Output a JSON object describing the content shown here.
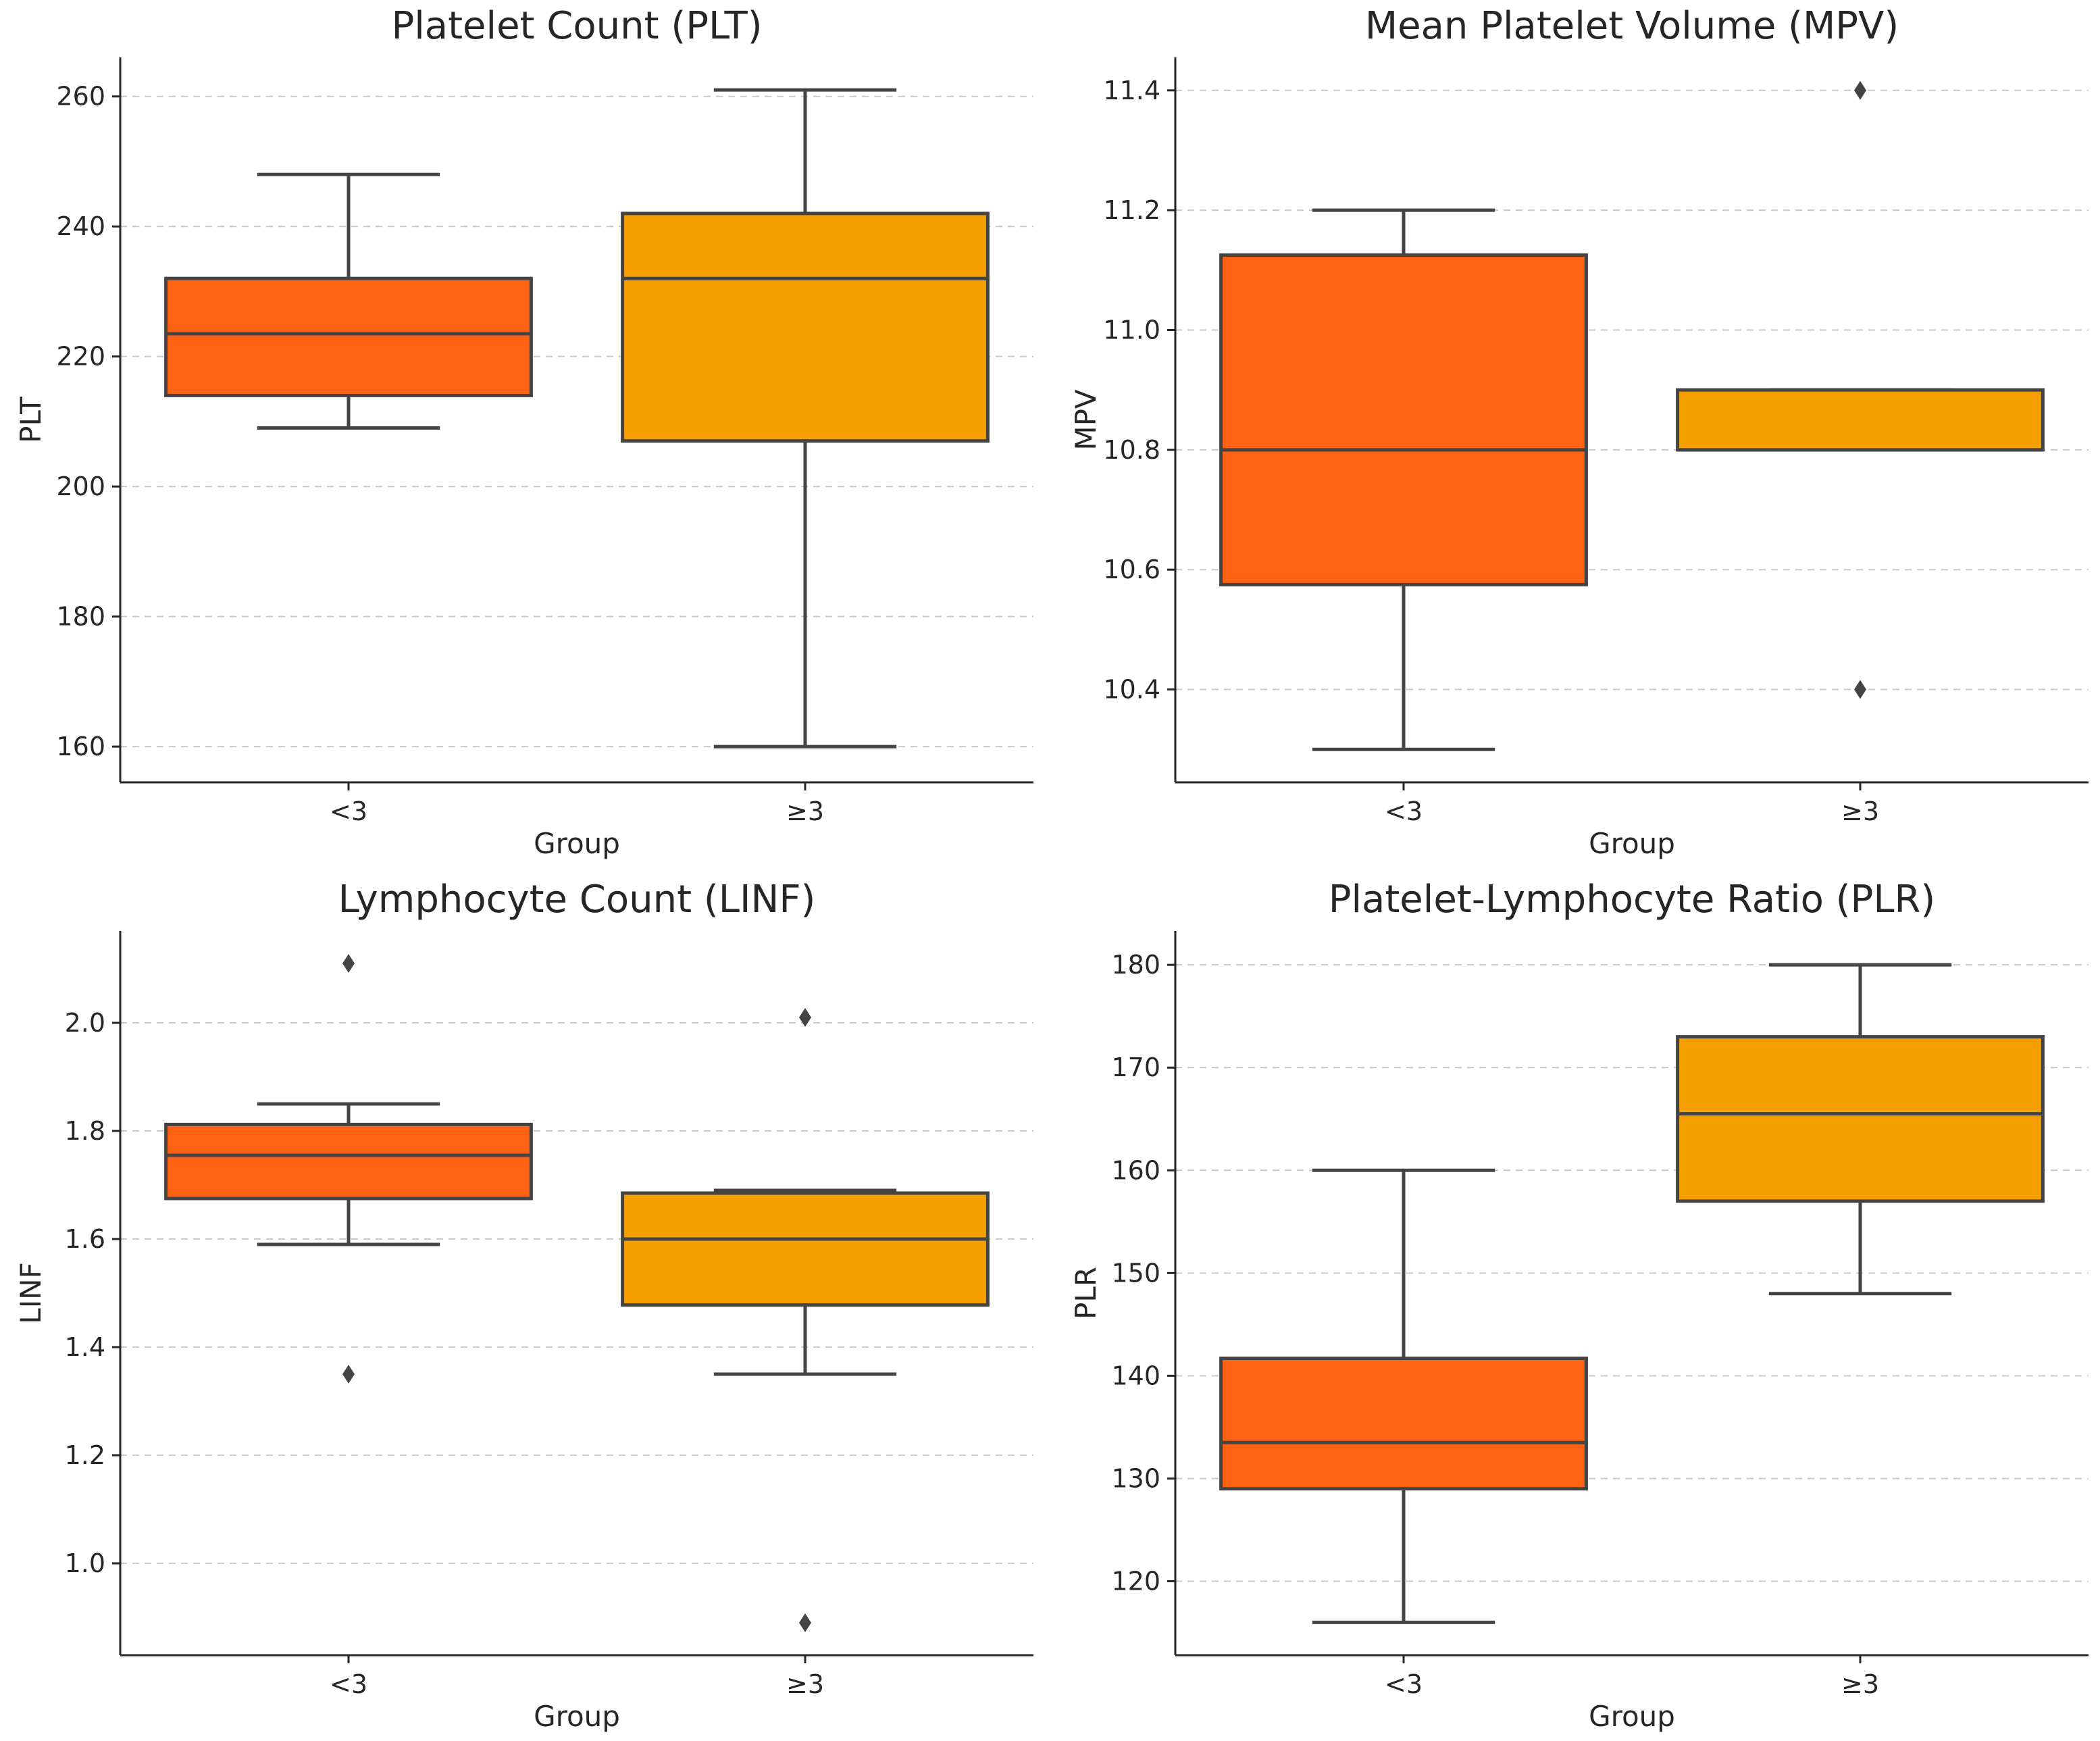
{
  "chart_data": [
    {
      "type": "box",
      "title": "Platelet Count (PLT)",
      "xlabel": "Group",
      "ylabel": "PLT",
      "categories": [
        "<3",
        "≥3"
      ],
      "ylim": [
        154.5,
        266
      ],
      "yticks": [
        160,
        180,
        200,
        220,
        240,
        260
      ],
      "ytick_labels": [
        "160",
        "180",
        "200",
        "220",
        "240",
        "260"
      ],
      "grid": true,
      "boxes": [
        {
          "category": "<3",
          "whisker_low": 209,
          "q1": 214,
          "median": 223.5,
          "q3": 232,
          "whisker_high": 248,
          "outliers": [],
          "color": "#ff6212"
        },
        {
          "category": "≥3",
          "whisker_low": 160,
          "q1": 207,
          "median": 232,
          "q3": 242,
          "whisker_high": 261,
          "outliers": [],
          "color": "#f59f00"
        }
      ]
    },
    {
      "type": "box",
      "title": "Mean Platelet Volume (MPV)",
      "xlabel": "Group",
      "ylabel": "MPV",
      "categories": [
        "<3",
        "≥3"
      ],
      "ylim": [
        10.245,
        11.455
      ],
      "yticks": [
        10.4,
        10.6,
        10.8,
        11.0,
        11.2,
        11.4
      ],
      "ytick_labels": [
        "10.4",
        "10.6",
        "10.8",
        "11.0",
        "11.2",
        "11.4"
      ],
      "grid": true,
      "boxes": [
        {
          "category": "<3",
          "whisker_low": 10.3,
          "q1": 10.575,
          "median": 10.8,
          "q3": 11.125,
          "whisker_high": 11.2,
          "outliers": [],
          "color": "#ff6212"
        },
        {
          "category": "≥3",
          "whisker_low": 10.8,
          "q1": 10.8,
          "median": 10.8,
          "q3": 10.9,
          "whisker_high": 10.9,
          "outliers": [
            11.4,
            10.4
          ],
          "color": "#f59f00"
        }
      ]
    },
    {
      "type": "box",
      "title": "Lymphocyte Count (LINF)",
      "xlabel": "Group",
      "ylabel": "LINF",
      "categories": [
        "<3",
        "≥3"
      ],
      "ylim": [
        0.83,
        2.17
      ],
      "yticks": [
        1.0,
        1.2,
        1.4,
        1.6,
        1.8,
        2.0
      ],
      "ytick_labels": [
        "1.0",
        "1.2",
        "1.4",
        "1.6",
        "1.8",
        "2.0"
      ],
      "grid": true,
      "boxes": [
        {
          "category": "<3",
          "whisker_low": 1.59,
          "q1": 1.675,
          "median": 1.755,
          "q3": 1.812,
          "whisker_high": 1.85,
          "outliers": [
            2.11,
            1.35
          ],
          "color": "#ff6212"
        },
        {
          "category": "≥3",
          "whisker_low": 1.35,
          "q1": 1.478,
          "median": 1.6,
          "q3": 1.685,
          "whisker_high": 1.69,
          "outliers": [
            2.01,
            0.89
          ],
          "color": "#f59f00"
        }
      ]
    },
    {
      "type": "box",
      "title": "Platelet-Lymphocyte Ratio (PLR)",
      "xlabel": "Group",
      "ylabel": "PLR",
      "categories": [
        "<3",
        "≥3"
      ],
      "ylim": [
        112.8,
        183.3
      ],
      "yticks": [
        120,
        130,
        140,
        150,
        160,
        170,
        180
      ],
      "ytick_labels": [
        "120",
        "130",
        "140",
        "150",
        "160",
        "170",
        "180"
      ],
      "grid": true,
      "boxes": [
        {
          "category": "<3",
          "whisker_low": 116,
          "q1": 129,
          "median": 133.5,
          "q3": 141.7,
          "whisker_high": 160,
          "outliers": [],
          "color": "#ff6212"
        },
        {
          "category": "≥3",
          "whisker_low": 148,
          "q1": 157,
          "median": 165.5,
          "q3": 173,
          "whisker_high": 180,
          "outliers": [],
          "color": "#f59f00"
        }
      ]
    }
  ]
}
